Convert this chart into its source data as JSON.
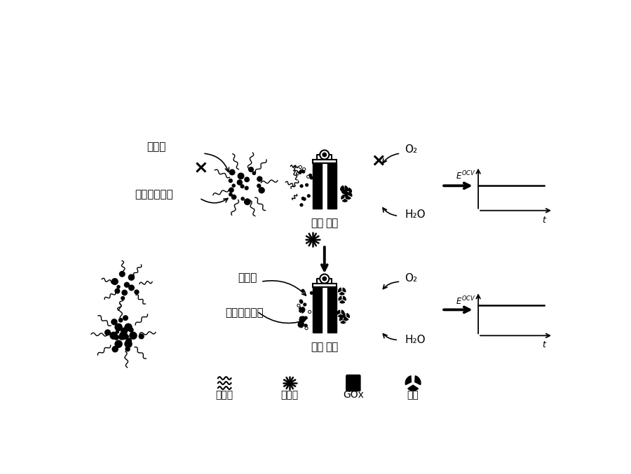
{
  "bg_color": "#ffffff",
  "top_section": {
    "left_labels": [
      "葡萄糖",
      "葡萄糖酸内酯"
    ],
    "electrode_labels": [
      "阳极",
      "阴极"
    ],
    "right_labels": [
      "O₂",
      "H₂O"
    ]
  },
  "bottom_section": {
    "left_labels": [
      "葡萄糖",
      "葡萄糖酸内酯"
    ],
    "electrode_labels": [
      "阳极",
      "阴极"
    ],
    "right_labels": [
      "O₂",
      "H₂O"
    ]
  },
  "legend_labels": [
    "适配体",
    "抗生素",
    "GOx",
    "漆酶"
  ]
}
